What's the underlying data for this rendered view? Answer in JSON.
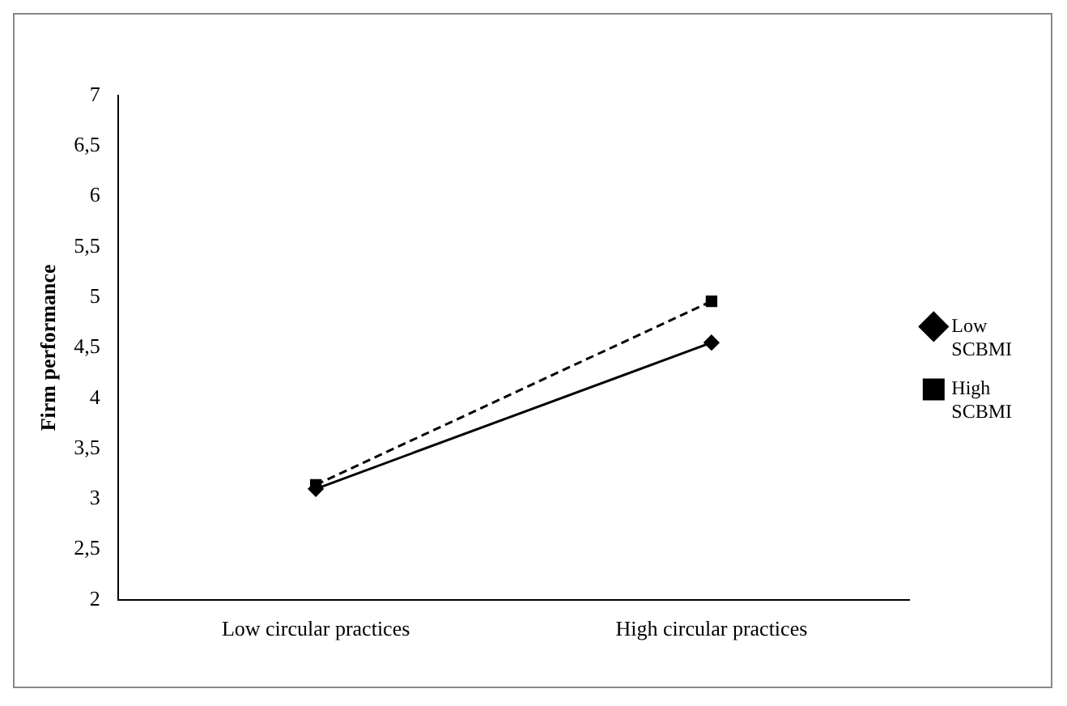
{
  "chart_data": {
    "type": "line",
    "ylabel": "Firm performance",
    "categories": [
      "Low circular practices",
      "High circular practices"
    ],
    "series": [
      {
        "name": "Low SCBMI",
        "color": "#000000",
        "values": [
          3.1,
          4.55
        ],
        "marker": "diamond",
        "line_style": "solid"
      },
      {
        "name": "High SCBMI",
        "color": "#000000",
        "values": [
          3.14,
          4.96
        ],
        "marker": "square",
        "line_style": "dashed"
      }
    ],
    "ylim": [
      2,
      7
    ],
    "yticks": [
      2,
      {
        "value": 2.5,
        "label": "2,5"
      },
      3,
      {
        "value": 3.5,
        "label": "3,5"
      },
      4,
      {
        "value": 4.5,
        "label": "4,5"
      },
      5,
      {
        "value": 5.5,
        "label": "5,5"
      },
      6,
      {
        "value": 6.5,
        "label": "6,5"
      },
      7
    ],
    "grid": false,
    "legend": "right"
  }
}
